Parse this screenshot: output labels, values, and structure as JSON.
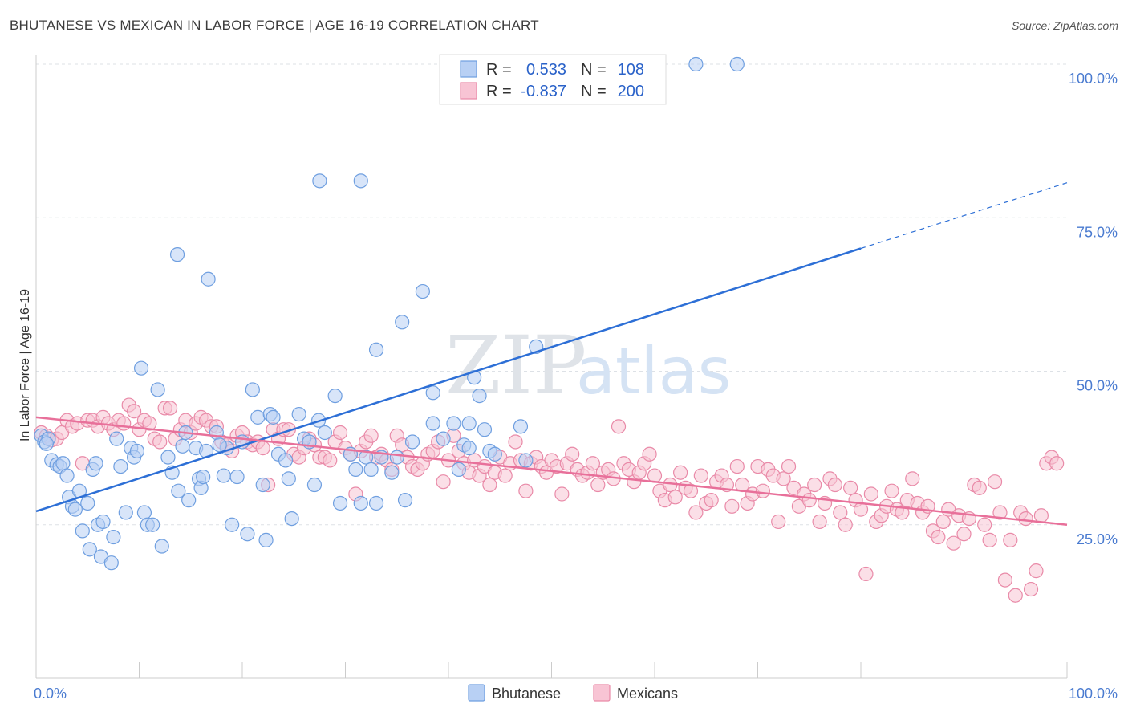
{
  "title": "BHUTANESE VS MEXICAN IN LABOR FORCE | AGE 16-19 CORRELATION CHART",
  "source": "Source: ZipAtlas.com",
  "watermark": {
    "zip": "ZIP",
    "atlas": "atlas"
  },
  "legend": {
    "r_label": "R =",
    "n_label": "N =",
    "rows": [
      {
        "r": "0.533",
        "n": "108",
        "fill": "#b8d0f4",
        "stroke": "#6f9fe0"
      },
      {
        "r": "-0.837",
        "n": "200",
        "fill": "#f8c4d4",
        "stroke": "#e98aa8"
      }
    ]
  },
  "bottom_legend": [
    {
      "name": "Bhutanese",
      "fill": "#b8d0f4",
      "stroke": "#6f9fe0"
    },
    {
      "name": "Mexicans",
      "fill": "#f8c4d4",
      "stroke": "#e98aa8"
    }
  ],
  "chart_data": {
    "type": "scatter",
    "title": "BHUTANESE VS MEXICAN IN LABOR FORCE | AGE 16-19 CORRELATION CHART",
    "xlabel": "",
    "ylabel": "In Labor Force | Age 16-19",
    "xlim": [
      0,
      100
    ],
    "ylim": [
      0,
      100
    ],
    "x_tick_labels": [
      "0.0%",
      "100.0%"
    ],
    "y_ticks": [
      25,
      50,
      75,
      100
    ],
    "y_tick_labels": [
      "25.0%",
      "50.0%",
      "75.0%",
      "100.0%"
    ],
    "grid": true,
    "legend_position": "top-center",
    "colors": {
      "blue_line": "#2d6fd6",
      "pink_line": "#e8709a"
    },
    "series": [
      {
        "name": "Bhutanese",
        "r": 0.533,
        "n": 108,
        "trend": {
          "x0": 0,
          "y0": 27.2,
          "x1": 80,
          "y1": 70.0,
          "dashed_to_x": 100,
          "dashed_to_y": 80.7
        },
        "points": [
          [
            0.5,
            39.5
          ],
          [
            0.8,
            38.5
          ],
          [
            1.2,
            39
          ],
          [
            1.5,
            35.5
          ],
          [
            2,
            34.8
          ],
          [
            2.3,
            34.5
          ],
          [
            2.6,
            35
          ],
          [
            3,
            33
          ],
          [
            3.2,
            29.5
          ],
          [
            3.5,
            28
          ],
          [
            3.8,
            27.5
          ],
          [
            4.2,
            30.5
          ],
          [
            4.5,
            24
          ],
          [
            5,
            28.5
          ],
          [
            5.5,
            34
          ],
          [
            6,
            25
          ],
          [
            5.8,
            35
          ],
          [
            6.5,
            25.5
          ],
          [
            5.2,
            21
          ],
          [
            6.3,
            19.8
          ],
          [
            7.3,
            18.8
          ],
          [
            7.5,
            23
          ],
          [
            7.8,
            39
          ],
          [
            8.2,
            34.5
          ],
          [
            8.7,
            27
          ],
          [
            9.2,
            37.5
          ],
          [
            9.5,
            36
          ],
          [
            10.2,
            50.5
          ],
          [
            10.5,
            27
          ],
          [
            10.8,
            25
          ],
          [
            11.3,
            25
          ],
          [
            11.8,
            47
          ],
          [
            12.2,
            21.5
          ],
          [
            12.8,
            36
          ],
          [
            13.2,
            33.5
          ],
          [
            13.8,
            30.5
          ],
          [
            14.5,
            40
          ],
          [
            14.8,
            29
          ],
          [
            15.5,
            37.5
          ],
          [
            15.8,
            32.5
          ],
          [
            16,
            31
          ],
          [
            16.2,
            32.8
          ],
          [
            16.5,
            37
          ],
          [
            16.7,
            65
          ],
          [
            17.5,
            40
          ],
          [
            18.2,
            33
          ],
          [
            18.5,
            37.5
          ],
          [
            19,
            25
          ],
          [
            19.5,
            32.8
          ],
          [
            20,
            38.5
          ],
          [
            20.5,
            23.5
          ],
          [
            21,
            47
          ],
          [
            21.5,
            42.5
          ],
          [
            22,
            31.5
          ],
          [
            22.3,
            22.5
          ],
          [
            22.7,
            43
          ],
          [
            23,
            42.5
          ],
          [
            23.5,
            36.5
          ],
          [
            24.2,
            35.5
          ],
          [
            24.5,
            32.5
          ],
          [
            24.8,
            26
          ],
          [
            26,
            39
          ],
          [
            26.5,
            38.5
          ],
          [
            27,
            31.5
          ],
          [
            27.4,
            42
          ],
          [
            28,
            40
          ],
          [
            29,
            46
          ],
          [
            29.5,
            28.5
          ],
          [
            30.5,
            36.5
          ],
          [
            31,
            34
          ],
          [
            31.5,
            28.5
          ],
          [
            32,
            36
          ],
          [
            32.5,
            34
          ],
          [
            33,
            28.5
          ],
          [
            33,
            53.5
          ],
          [
            33.5,
            36
          ],
          [
            34.5,
            33.5
          ],
          [
            35,
            36
          ],
          [
            35.5,
            58
          ],
          [
            35.8,
            29
          ],
          [
            36.5,
            38.5
          ],
          [
            37.5,
            63
          ],
          [
            38.5,
            46.5
          ],
          [
            38.5,
            41.5
          ],
          [
            39.5,
            39
          ],
          [
            40.5,
            41.5
          ],
          [
            41,
            34
          ],
          [
            41.5,
            38
          ],
          [
            42,
            37.5
          ],
          [
            42,
            41.5
          ],
          [
            42.5,
            49
          ],
          [
            43,
            46
          ],
          [
            43.5,
            40.5
          ],
          [
            44,
            37
          ],
          [
            44.5,
            36.5
          ],
          [
            47,
            41
          ],
          [
            47.5,
            35.5
          ],
          [
            48.5,
            54
          ],
          [
            27.5,
            81
          ],
          [
            31.5,
            81
          ],
          [
            64,
            100
          ],
          [
            68,
            100
          ],
          [
            1,
            38.2
          ],
          [
            9.8,
            37
          ],
          [
            14.2,
            37.8
          ],
          [
            17.8,
            38
          ],
          [
            25.5,
            43
          ],
          [
            13.7,
            69
          ]
        ]
      },
      {
        "name": "Mexicans",
        "r": -0.837,
        "n": 200,
        "trend": {
          "x0": 0,
          "y0": 42.5,
          "x1": 100,
          "y1": 25.0
        },
        "points": [
          [
            0.5,
            40
          ],
          [
            1,
            39.5
          ],
          [
            1.5,
            38.8
          ],
          [
            2,
            39
          ],
          [
            2.5,
            40
          ],
          [
            3,
            42
          ],
          [
            3.5,
            41
          ],
          [
            4,
            41.5
          ],
          [
            4.5,
            35
          ],
          [
            5,
            42
          ],
          [
            5.5,
            42
          ],
          [
            6,
            41
          ],
          [
            6.5,
            42.5
          ],
          [
            7,
            41.5
          ],
          [
            7.5,
            40.5
          ],
          [
            8,
            42
          ],
          [
            8.5,
            41.5
          ],
          [
            9,
            44.5
          ],
          [
            9.5,
            43.5
          ],
          [
            10,
            40.5
          ],
          [
            10.5,
            42
          ],
          [
            11,
            41.5
          ],
          [
            11.5,
            39
          ],
          [
            12,
            38.5
          ],
          [
            12.5,
            44
          ],
          [
            13,
            44
          ],
          [
            13.5,
            39
          ],
          [
            14,
            40.5
          ],
          [
            14.5,
            42
          ],
          [
            15,
            40
          ],
          [
            15.5,
            41.5
          ],
          [
            16,
            42.5
          ],
          [
            16.5,
            42
          ],
          [
            17,
            41
          ],
          [
            17.5,
            41
          ],
          [
            18,
            38.5
          ],
          [
            18.5,
            38
          ],
          [
            19,
            37
          ],
          [
            19.5,
            39.5
          ],
          [
            20,
            40
          ],
          [
            20.5,
            38.5
          ],
          [
            21,
            38
          ],
          [
            21.5,
            38.5
          ],
          [
            22,
            37.5
          ],
          [
            22.5,
            31.5
          ],
          [
            23,
            40.5
          ],
          [
            23.5,
            39
          ],
          [
            24,
            40.5
          ],
          [
            24.5,
            40.5
          ],
          [
            25,
            36.5
          ],
          [
            25.5,
            36
          ],
          [
            26,
            37.5
          ],
          [
            26.5,
            39
          ],
          [
            27,
            38
          ],
          [
            27.5,
            36
          ],
          [
            28,
            36
          ],
          [
            28.5,
            35.5
          ],
          [
            29,
            38.5
          ],
          [
            29.5,
            40
          ],
          [
            30,
            37.5
          ],
          [
            30.5,
            36.5
          ],
          [
            31,
            30
          ],
          [
            31.5,
            37
          ],
          [
            32,
            38.5
          ],
          [
            32.5,
            39.5
          ],
          [
            33,
            36
          ],
          [
            33.5,
            36.5
          ],
          [
            34,
            35.5
          ],
          [
            34.5,
            34
          ],
          [
            35,
            39.5
          ],
          [
            35.5,
            38
          ],
          [
            36,
            36
          ],
          [
            36.5,
            34.5
          ],
          [
            37,
            34
          ],
          [
            37.5,
            35
          ],
          [
            38,
            36.5
          ],
          [
            38.5,
            37
          ],
          [
            39,
            38.5
          ],
          [
            39.5,
            32
          ],
          [
            40,
            35.5
          ],
          [
            40.5,
            39.5
          ],
          [
            41,
            37
          ],
          [
            41.5,
            35
          ],
          [
            42,
            33.5
          ],
          [
            42.5,
            35.5
          ],
          [
            43,
            33
          ],
          [
            43.5,
            34.5
          ],
          [
            44,
            31.5
          ],
          [
            44.5,
            33.5
          ],
          [
            45,
            36
          ],
          [
            45.5,
            33
          ],
          [
            46,
            35
          ],
          [
            46.5,
            38.5
          ],
          [
            47,
            35.5
          ],
          [
            47.5,
            30.5
          ],
          [
            48,
            35
          ],
          [
            48.5,
            36
          ],
          [
            49,
            34.5
          ],
          [
            49.5,
            33.5
          ],
          [
            50,
            35.5
          ],
          [
            50.5,
            34.5
          ],
          [
            51,
            30
          ],
          [
            51.5,
            35
          ],
          [
            52,
            36.5
          ],
          [
            52.5,
            34
          ],
          [
            53,
            33
          ],
          [
            53.5,
            33.5
          ],
          [
            54,
            35
          ],
          [
            54.5,
            31.5
          ],
          [
            55,
            33.5
          ],
          [
            55.5,
            34
          ],
          [
            56,
            32.5
          ],
          [
            56.5,
            41
          ],
          [
            57,
            35
          ],
          [
            57.5,
            34
          ],
          [
            58,
            32
          ],
          [
            58.5,
            33.5
          ],
          [
            59,
            35
          ],
          [
            59.5,
            36.5
          ],
          [
            60,
            33
          ],
          [
            60.5,
            30.5
          ],
          [
            61,
            29
          ],
          [
            61.5,
            31.5
          ],
          [
            62,
            29.5
          ],
          [
            62.5,
            33.5
          ],
          [
            63,
            31
          ],
          [
            63.5,
            30.5
          ],
          [
            64,
            27
          ],
          [
            64.5,
            33
          ],
          [
            65,
            28.5
          ],
          [
            65.5,
            29
          ],
          [
            66,
            32
          ],
          [
            66.5,
            33
          ],
          [
            67,
            31.5
          ],
          [
            67.5,
            28
          ],
          [
            68,
            34.5
          ],
          [
            68.5,
            31.5
          ],
          [
            69,
            28.5
          ],
          [
            69.5,
            30
          ],
          [
            70,
            34.5
          ],
          [
            70.5,
            30.5
          ],
          [
            71,
            34
          ],
          [
            71.5,
            33
          ],
          [
            72,
            25.5
          ],
          [
            72.5,
            32.5
          ],
          [
            73,
            34.5
          ],
          [
            73.5,
            31
          ],
          [
            74,
            28
          ],
          [
            74.5,
            30
          ],
          [
            75,
            29
          ],
          [
            75.5,
            31.5
          ],
          [
            76,
            25.5
          ],
          [
            76.5,
            28.5
          ],
          [
            77,
            32.5
          ],
          [
            77.5,
            31.5
          ],
          [
            78,
            27
          ],
          [
            78.5,
            25
          ],
          [
            79,
            31
          ],
          [
            79.5,
            29
          ],
          [
            80,
            27.5
          ],
          [
            80.5,
            17
          ],
          [
            81,
            30
          ],
          [
            81.5,
            25.5
          ],
          [
            82,
            26.5
          ],
          [
            82.5,
            28
          ],
          [
            83,
            30.5
          ],
          [
            83.5,
            27.5
          ],
          [
            84,
            27
          ],
          [
            84.5,
            29
          ],
          [
            85,
            32.5
          ],
          [
            85.5,
            28.5
          ],
          [
            86,
            27
          ],
          [
            86.5,
            28
          ],
          [
            87,
            24
          ],
          [
            87.5,
            23
          ],
          [
            88,
            25.5
          ],
          [
            88.5,
            27.5
          ],
          [
            89,
            22
          ],
          [
            89.5,
            26.5
          ],
          [
            90,
            23.5
          ],
          [
            90.5,
            26
          ],
          [
            91,
            31.5
          ],
          [
            91.5,
            31
          ],
          [
            92,
            25
          ],
          [
            92.5,
            22.5
          ],
          [
            93,
            32
          ],
          [
            93.5,
            27
          ],
          [
            94,
            16
          ],
          [
            94.5,
            22.5
          ],
          [
            95,
            13.5
          ],
          [
            95.5,
            27
          ],
          [
            96,
            26
          ],
          [
            96.5,
            14.5
          ],
          [
            97,
            17.5
          ],
          [
            97.5,
            26.5
          ],
          [
            98,
            35
          ],
          [
            98.5,
            36
          ],
          [
            99,
            35
          ]
        ]
      }
    ]
  }
}
